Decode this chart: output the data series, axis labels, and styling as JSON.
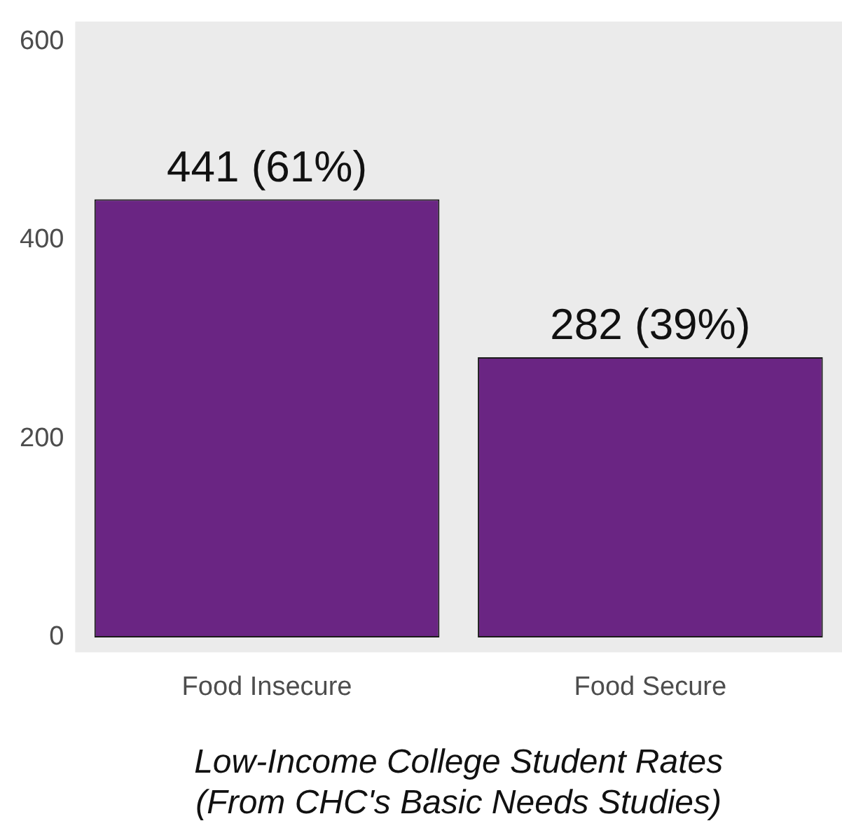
{
  "chart_data": {
    "type": "bar",
    "xlabel": "Low-Income College Student Rates\n(From CHC's Basic Needs Studies)",
    "categories": [
      "Food Insecure",
      "Food Secure"
    ],
    "values": [
      441,
      282
    ],
    "value_labels": [
      "441 (61%)",
      "282 (39%)"
    ],
    "color": "#6a2583",
    "ylim": [
      -15,
      620
    ],
    "yticks": [
      0,
      200,
      400,
      600
    ],
    "grid": false
  }
}
